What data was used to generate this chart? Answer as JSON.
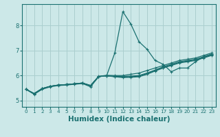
{
  "xlabel": "Humidex (Indice chaleur)",
  "xlim": [
    -0.5,
    23.5
  ],
  "ylim": [
    4.75,
    8.85
  ],
  "bg_color": "#cce8e8",
  "grid_color": "#aacece",
  "line_color": "#1a7070",
  "lines": [
    [
      5.45,
      5.25,
      5.45,
      5.55,
      5.6,
      5.62,
      5.65,
      5.68,
      5.55,
      5.95,
      6.0,
      6.9,
      8.55,
      8.05,
      7.35,
      7.05,
      6.6,
      6.45,
      6.15,
      6.3,
      6.3,
      6.55,
      6.75,
      6.85
    ],
    [
      5.45,
      5.28,
      5.48,
      5.57,
      5.62,
      5.64,
      5.67,
      5.7,
      5.6,
      5.97,
      6.01,
      6.0,
      6.0,
      6.05,
      6.1,
      6.2,
      6.3,
      6.4,
      6.5,
      6.6,
      6.65,
      6.7,
      6.8,
      6.9
    ],
    [
      5.45,
      5.28,
      5.48,
      5.57,
      5.62,
      5.64,
      5.67,
      5.7,
      5.6,
      5.96,
      5.99,
      5.97,
      5.96,
      5.98,
      6.0,
      6.1,
      6.22,
      6.35,
      6.45,
      6.55,
      6.6,
      6.65,
      6.75,
      6.85
    ],
    [
      5.45,
      5.28,
      5.48,
      5.57,
      5.62,
      5.64,
      5.67,
      5.7,
      5.6,
      5.96,
      5.99,
      5.96,
      5.94,
      5.95,
      5.98,
      6.08,
      6.2,
      6.32,
      6.42,
      6.52,
      6.58,
      6.62,
      6.72,
      6.82
    ],
    [
      5.45,
      5.28,
      5.48,
      5.57,
      5.62,
      5.64,
      5.67,
      5.7,
      5.6,
      5.96,
      5.99,
      5.95,
      5.92,
      5.93,
      5.95,
      6.05,
      6.18,
      6.3,
      6.4,
      6.5,
      6.55,
      6.6,
      6.7,
      6.8
    ]
  ],
  "xticks": [
    0,
    1,
    2,
    3,
    4,
    5,
    6,
    7,
    8,
    9,
    10,
    11,
    12,
    13,
    14,
    15,
    16,
    17,
    18,
    19,
    20,
    21,
    22,
    23
  ],
  "yticks": [
    5,
    6,
    7,
    8
  ],
  "tick_fontsize": 6,
  "xlabel_fontsize": 7.5,
  "linewidth": 0.9,
  "markersize": 3.0
}
